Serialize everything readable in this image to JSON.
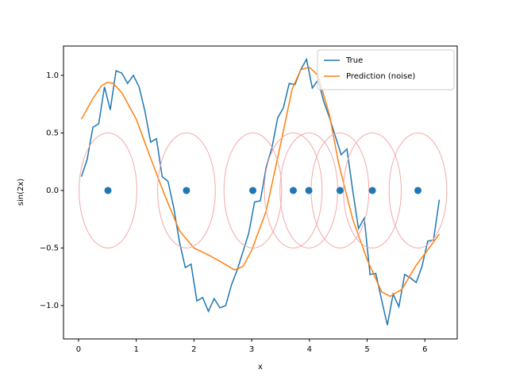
{
  "chart_data": {
    "type": "line",
    "xlabel": "x",
    "ylabel": "sin(2x)",
    "xlim": [
      -0.26,
      6.56
    ],
    "ylim": [
      -1.29,
      1.255
    ],
    "xticks": [
      0,
      1,
      2,
      3,
      4,
      5,
      6
    ],
    "yticks": [
      {
        "value": -1,
        "label": "−1.0"
      },
      {
        "value": -0.5,
        "label": "−0.5"
      },
      {
        "value": 0,
        "label": "0.0"
      },
      {
        "value": 0.5,
        "label": "0.5"
      },
      {
        "value": 1,
        "label": "1.0"
      }
    ],
    "legend": "upper right",
    "series": [
      {
        "name": "True",
        "color": "#1f77b4",
        "kind": "line",
        "x": [
          0.05,
          0.15,
          0.25,
          0.35,
          0.45,
          0.55,
          0.65,
          0.75,
          0.85,
          0.95,
          1.05,
          1.15,
          1.25,
          1.35,
          1.45,
          1.55,
          1.65,
          1.75,
          1.85,
          1.95,
          2.05,
          2.15,
          2.25,
          2.35,
          2.45,
          2.55,
          2.65,
          2.75,
          2.85,
          2.95,
          3.05,
          3.15,
          3.25,
          3.35,
          3.45,
          3.55,
          3.65,
          3.75,
          3.85,
          3.95,
          4.05,
          4.15,
          4.25,
          4.35,
          4.45,
          4.55,
          4.65,
          4.75,
          4.85,
          4.95,
          5.05,
          5.15,
          5.25,
          5.35,
          5.45,
          5.55,
          5.65,
          5.75,
          5.85,
          5.95,
          6.05,
          6.15,
          6.25
        ],
        "values": [
          0.12,
          0.27,
          0.55,
          0.58,
          0.9,
          0.7,
          1.04,
          1.02,
          0.93,
          1.0,
          0.9,
          0.69,
          0.42,
          0.45,
          0.12,
          0.08,
          -0.15,
          -0.45,
          -0.67,
          -0.64,
          -0.96,
          -0.93,
          -1.05,
          -0.94,
          -1.02,
          -1.0,
          -0.82,
          -0.69,
          -0.53,
          -0.37,
          -0.1,
          -0.09,
          0.2,
          0.37,
          0.63,
          0.72,
          0.93,
          0.92,
          1.05,
          1.14,
          0.89,
          0.96,
          0.77,
          0.63,
          0.47,
          0.31,
          0.36,
          0.0,
          -0.33,
          -0.24,
          -0.73,
          -0.72,
          -0.95,
          -1.17,
          -0.9,
          -1.01,
          -0.73,
          -0.76,
          -0.8,
          -0.66,
          -0.44,
          -0.43,
          -0.08
        ]
      },
      {
        "name": "Prediction (noise)",
        "color": "#ff7f0e",
        "kind": "line",
        "x": [
          0.05,
          0.25,
          0.4,
          0.5,
          0.6,
          0.75,
          1.0,
          1.25,
          1.5,
          1.75,
          2.0,
          2.25,
          2.5,
          2.7,
          2.85,
          3.0,
          3.25,
          3.5,
          3.7,
          3.85,
          4.0,
          4.15,
          4.35,
          4.5,
          4.75,
          5.0,
          5.25,
          5.4,
          5.6,
          5.85,
          6.0,
          6.25
        ],
        "values": [
          0.62,
          0.8,
          0.91,
          0.94,
          0.93,
          0.85,
          0.62,
          0.28,
          -0.05,
          -0.35,
          -0.5,
          -0.56,
          -0.63,
          -0.69,
          -0.66,
          -0.52,
          -0.18,
          0.4,
          0.88,
          1.05,
          1.07,
          1.0,
          0.65,
          0.25,
          -0.25,
          -0.6,
          -0.88,
          -0.92,
          -0.86,
          -0.65,
          -0.55,
          -0.38
        ]
      },
      {
        "kind": "scatter",
        "color": "#1f77b4",
        "ring_color": "#f4a9a8",
        "radius": 0.5,
        "x": [
          0.51,
          1.87,
          3.02,
          3.72,
          3.99,
          4.53,
          5.09,
          5.88
        ],
        "values": [
          0,
          0,
          0,
          0,
          0,
          0,
          0,
          0
        ]
      }
    ]
  }
}
